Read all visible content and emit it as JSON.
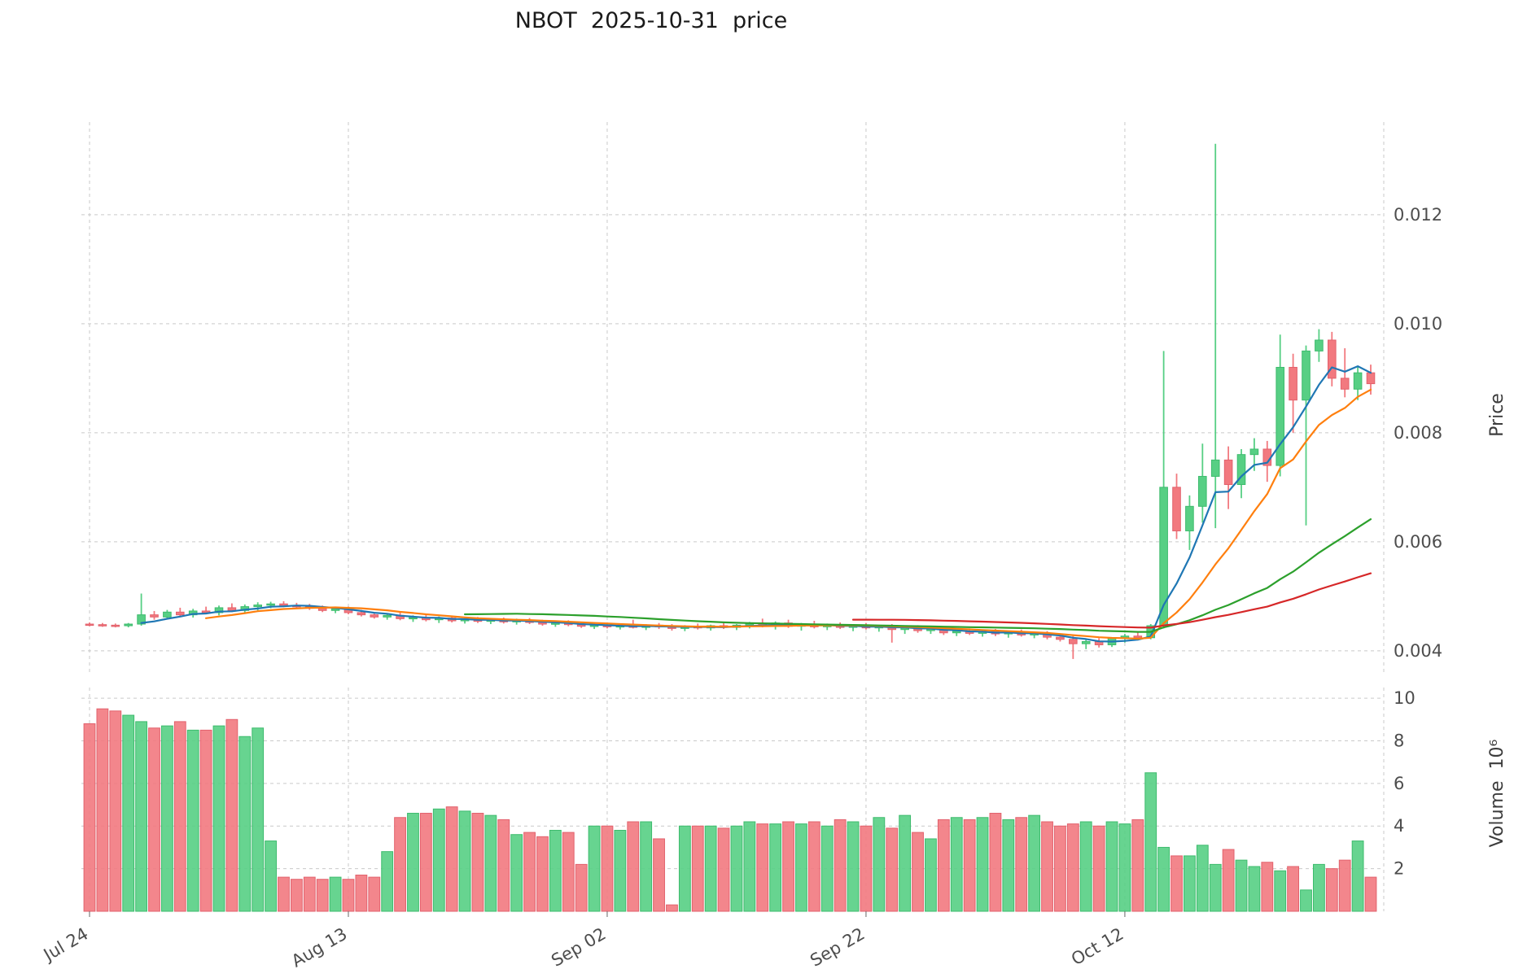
{
  "chart_data": {
    "type": "candlestick",
    "title": "NBOT  2025-10-31  price",
    "ylabel_price": "Price",
    "ylabel_volume": "Volume  10⁶",
    "x_ticks": [
      {
        "index": 0,
        "label": "Jul 24"
      },
      {
        "index": 20,
        "label": "Aug 13"
      },
      {
        "index": 40,
        "label": "Sep 02"
      },
      {
        "index": 60,
        "label": "Sep 22"
      },
      {
        "index": 80,
        "label": "Oct 12"
      }
    ],
    "price_ticks": [
      {
        "value": 0.004,
        "label": "0.004"
      },
      {
        "value": 0.006,
        "label": "0.006"
      },
      {
        "value": 0.008,
        "label": "0.008"
      },
      {
        "value": 0.01,
        "label": "0.010"
      },
      {
        "value": 0.012,
        "label": "0.012"
      }
    ],
    "volume_ticks": [
      {
        "value": 2,
        "label": "2"
      },
      {
        "value": 4,
        "label": "4"
      },
      {
        "value": 6,
        "label": "6"
      },
      {
        "value": 8,
        "label": "8"
      },
      {
        "value": 10,
        "label": "10"
      }
    ],
    "price_ylim": [
      0.00355,
      0.0137
    ],
    "volume_ylim": [
      0,
      10.5
    ],
    "grid": true,
    "legend": "none",
    "colors": {
      "up": "#57cf84",
      "up_edge": "#3dbb6d",
      "down": "#f2797f",
      "down_edge": "#e2616c",
      "grid": "#c9c9c9",
      "tick_text": "#4d4d4d",
      "title_text": "#1a1a1a"
    },
    "ma_lines": [
      {
        "name": "SMA5",
        "window": 5,
        "color": "#1f77b4"
      },
      {
        "name": "SMA10",
        "window": 10,
        "color": "#ff7f0e"
      },
      {
        "name": "SMA30",
        "window": 30,
        "color": "#2ca02c"
      },
      {
        "name": "SMA60",
        "window": 60,
        "color": "#d62728"
      }
    ],
    "dates": [
      "2025-07-24",
      "2025-07-25",
      "2025-07-26",
      "2025-07-27",
      "2025-07-28",
      "2025-07-29",
      "2025-07-30",
      "2025-07-31",
      "2025-08-01",
      "2025-08-02",
      "2025-08-03",
      "2025-08-04",
      "2025-08-05",
      "2025-08-06",
      "2025-08-07",
      "2025-08-08",
      "2025-08-09",
      "2025-08-10",
      "2025-08-11",
      "2025-08-12",
      "2025-08-13",
      "2025-08-14",
      "2025-08-15",
      "2025-08-16",
      "2025-08-17",
      "2025-08-18",
      "2025-08-19",
      "2025-08-20",
      "2025-08-21",
      "2025-08-22",
      "2025-08-23",
      "2025-08-24",
      "2025-08-25",
      "2025-08-26",
      "2025-08-27",
      "2025-08-28",
      "2025-08-29",
      "2025-08-30",
      "2025-08-31",
      "2025-09-01",
      "2025-09-02",
      "2025-09-03",
      "2025-09-04",
      "2025-09-05",
      "2025-09-06",
      "2025-09-07",
      "2025-09-08",
      "2025-09-09",
      "2025-09-10",
      "2025-09-11",
      "2025-09-12",
      "2025-09-13",
      "2025-09-14",
      "2025-09-15",
      "2025-09-16",
      "2025-09-17",
      "2025-09-18",
      "2025-09-19",
      "2025-09-20",
      "2025-09-21",
      "2025-09-22",
      "2025-09-23",
      "2025-09-24",
      "2025-09-25",
      "2025-09-26",
      "2025-09-27",
      "2025-09-28",
      "2025-09-29",
      "2025-09-30",
      "2025-10-01",
      "2025-10-02",
      "2025-10-03",
      "2025-10-04",
      "2025-10-05",
      "2025-10-06",
      "2025-10-07",
      "2025-10-08",
      "2025-10-09",
      "2025-10-10",
      "2025-10-11",
      "2025-10-12",
      "2025-10-13",
      "2025-10-14",
      "2025-10-15",
      "2025-10-16",
      "2025-10-17",
      "2025-10-18",
      "2025-10-19",
      "2025-10-20",
      "2025-10-21",
      "2025-10-22",
      "2025-10-23",
      "2025-10-24",
      "2025-10-25",
      "2025-10-26",
      "2025-10-27",
      "2025-10-28",
      "2025-10-29",
      "2025-10-30",
      "2025-10-31"
    ],
    "ohlc": [
      [
        0.00449,
        0.00452,
        0.00445,
        0.00448
      ],
      [
        0.00448,
        0.00451,
        0.00444,
        0.00447
      ],
      [
        0.00447,
        0.0045,
        0.00443,
        0.00446
      ],
      [
        0.00446,
        0.00451,
        0.00443,
        0.00449
      ],
      [
        0.00449,
        0.00505,
        0.00446,
        0.00466
      ],
      [
        0.00466,
        0.00473,
        0.00457,
        0.00462
      ],
      [
        0.00462,
        0.00475,
        0.00459,
        0.00471
      ],
      [
        0.00471,
        0.00479,
        0.00463,
        0.00466
      ],
      [
        0.00466,
        0.00477,
        0.00461,
        0.00473
      ],
      [
        0.00473,
        0.00481,
        0.00467,
        0.0047
      ],
      [
        0.0047,
        0.00483,
        0.00465,
        0.00479
      ],
      [
        0.00479,
        0.00487,
        0.00471,
        0.00474
      ],
      [
        0.00474,
        0.00485,
        0.00469,
        0.00481
      ],
      [
        0.00481,
        0.00489,
        0.00473,
        0.00484
      ],
      [
        0.00484,
        0.0049,
        0.00478,
        0.00486
      ],
      [
        0.00486,
        0.00491,
        0.0048,
        0.00483
      ],
      [
        0.00483,
        0.00488,
        0.00478,
        0.00481
      ],
      [
        0.00481,
        0.00486,
        0.00475,
        0.00478
      ],
      [
        0.00478,
        0.00483,
        0.00471,
        0.00474
      ],
      [
        0.00474,
        0.0048,
        0.00469,
        0.00477
      ],
      [
        0.00477,
        0.00481,
        0.00467,
        0.0047
      ],
      [
        0.0047,
        0.00475,
        0.00463,
        0.00466
      ],
      [
        0.00466,
        0.00471,
        0.00459,
        0.00462
      ],
      [
        0.00462,
        0.00469,
        0.00457,
        0.00465
      ],
      [
        0.00465,
        0.0047,
        0.00456,
        0.00459
      ],
      [
        0.00459,
        0.00465,
        0.00453,
        0.00461
      ],
      [
        0.00461,
        0.00466,
        0.00454,
        0.00457
      ],
      [
        0.00457,
        0.00463,
        0.00451,
        0.0046
      ],
      [
        0.0046,
        0.00464,
        0.00452,
        0.00455
      ],
      [
        0.00455,
        0.00461,
        0.0045,
        0.00458
      ],
      [
        0.00458,
        0.00462,
        0.00451,
        0.00454
      ],
      [
        0.00454,
        0.0046,
        0.00449,
        0.00457
      ],
      [
        0.00457,
        0.00461,
        0.0045,
        0.00453
      ],
      [
        0.00453,
        0.00459,
        0.00448,
        0.00456
      ],
      [
        0.00456,
        0.0046,
        0.00449,
        0.00452
      ],
      [
        0.00452,
        0.00457,
        0.00446,
        0.00449
      ],
      [
        0.00449,
        0.00455,
        0.00444,
        0.00451
      ],
      [
        0.00451,
        0.00456,
        0.00445,
        0.00448
      ],
      [
        0.00448,
        0.00453,
        0.00442,
        0.00445
      ],
      [
        0.00445,
        0.00451,
        0.0044,
        0.00447
      ],
      [
        0.00447,
        0.00452,
        0.00441,
        0.00444
      ],
      [
        0.00444,
        0.0045,
        0.00439,
        0.00446
      ],
      [
        0.00446,
        0.00457,
        0.00441,
        0.00443
      ],
      [
        0.00443,
        0.00449,
        0.00438,
        0.00447
      ],
      [
        0.00447,
        0.00451,
        0.0044,
        0.00444
      ],
      [
        0.00444,
        0.00449,
        0.00437,
        0.00441
      ],
      [
        0.00441,
        0.00447,
        0.00436,
        0.00445
      ],
      [
        0.00445,
        0.0045,
        0.00439,
        0.00442
      ],
      [
        0.00442,
        0.00448,
        0.00437,
        0.00446
      ],
      [
        0.00446,
        0.00451,
        0.0044,
        0.00443
      ],
      [
        0.00443,
        0.00449,
        0.00438,
        0.00447
      ],
      [
        0.00447,
        0.00453,
        0.00441,
        0.0045
      ],
      [
        0.0045,
        0.00459,
        0.00443,
        0.00446
      ],
      [
        0.00446,
        0.00454,
        0.00439,
        0.00451
      ],
      [
        0.00451,
        0.00457,
        0.00442,
        0.00445
      ],
      [
        0.00445,
        0.00451,
        0.00437,
        0.00449
      ],
      [
        0.00449,
        0.00455,
        0.00441,
        0.00444
      ],
      [
        0.00444,
        0.0045,
        0.00438,
        0.00447
      ],
      [
        0.00447,
        0.00452,
        0.0044,
        0.00443
      ],
      [
        0.00443,
        0.00449,
        0.00436,
        0.00446
      ],
      [
        0.00446,
        0.00451,
        0.00439,
        0.00442
      ],
      [
        0.00442,
        0.00447,
        0.00435,
        0.00445
      ],
      [
        0.00445,
        0.00449,
        0.00415,
        0.00439
      ],
      [
        0.00439,
        0.00445,
        0.00431,
        0.00443
      ],
      [
        0.00443,
        0.00447,
        0.00433,
        0.00437
      ],
      [
        0.00437,
        0.00443,
        0.00431,
        0.0044
      ],
      [
        0.0044,
        0.00444,
        0.00429,
        0.00433
      ],
      [
        0.00433,
        0.00439,
        0.00427,
        0.00436
      ],
      [
        0.00436,
        0.00441,
        0.00429,
        0.00432
      ],
      [
        0.00432,
        0.00438,
        0.00426,
        0.00435
      ],
      [
        0.00435,
        0.0044,
        0.00427,
        0.00431
      ],
      [
        0.00431,
        0.00436,
        0.00424,
        0.00434
      ],
      [
        0.00434,
        0.00439,
        0.00426,
        0.00429
      ],
      [
        0.00429,
        0.00435,
        0.00423,
        0.00432
      ],
      [
        0.00432,
        0.00436,
        0.00421,
        0.00425
      ],
      [
        0.00425,
        0.00431,
        0.00417,
        0.00421
      ],
      [
        0.00421,
        0.00427,
        0.00385,
        0.00413
      ],
      [
        0.00413,
        0.00421,
        0.00403,
        0.00417
      ],
      [
        0.00417,
        0.00423,
        0.00406,
        0.00411
      ],
      [
        0.00411,
        0.00425,
        0.00407,
        0.00423
      ],
      [
        0.00423,
        0.00431,
        0.00415,
        0.00427
      ],
      [
        0.00427,
        0.00435,
        0.00419,
        0.00424
      ],
      [
        0.00424,
        0.00449,
        0.00421,
        0.00446
      ],
      [
        0.00446,
        0.0095,
        0.00441,
        0.007
      ],
      [
        0.007,
        0.00725,
        0.00605,
        0.0062
      ],
      [
        0.0062,
        0.00685,
        0.00585,
        0.00665
      ],
      [
        0.00665,
        0.0078,
        0.00635,
        0.0072
      ],
      [
        0.0072,
        0.0133,
        0.00625,
        0.0075
      ],
      [
        0.0075,
        0.00775,
        0.0066,
        0.00705
      ],
      [
        0.00705,
        0.0077,
        0.0068,
        0.0076
      ],
      [
        0.0076,
        0.0079,
        0.0073,
        0.0077
      ],
      [
        0.0077,
        0.00785,
        0.0071,
        0.0074
      ],
      [
        0.0074,
        0.0098,
        0.0072,
        0.0092
      ],
      [
        0.0092,
        0.00945,
        0.008,
        0.0086
      ],
      [
        0.0086,
        0.0096,
        0.0063,
        0.0095
      ],
      [
        0.0095,
        0.0099,
        0.0093,
        0.0097
      ],
      [
        0.0097,
        0.00985,
        0.00885,
        0.009
      ],
      [
        0.009,
        0.00955,
        0.00865,
        0.0088
      ],
      [
        0.0088,
        0.0092,
        0.0086,
        0.0091
      ],
      [
        0.0091,
        0.00925,
        0.0087,
        0.0089
      ]
    ],
    "volume_millions": [
      8.8,
      9.5,
      9.4,
      9.2,
      8.9,
      8.6,
      8.7,
      8.9,
      8.5,
      8.5,
      8.7,
      9.0,
      8.2,
      8.6,
      3.3,
      1.6,
      1.5,
      1.6,
      1.5,
      1.6,
      1.5,
      1.7,
      1.6,
      2.8,
      4.4,
      4.6,
      4.6,
      4.8,
      4.9,
      4.7,
      4.6,
      4.5,
      4.3,
      3.6,
      3.7,
      3.5,
      3.8,
      3.7,
      2.2,
      4.0,
      4.0,
      3.8,
      4.2,
      4.2,
      3.4,
      0.3,
      4.0,
      4.0,
      4.0,
      3.9,
      4.0,
      4.2,
      4.1,
      4.1,
      4.2,
      4.1,
      4.2,
      4.0,
      4.3,
      4.2,
      4.0,
      4.4,
      3.9,
      4.5,
      3.7,
      3.4,
      4.3,
      4.4,
      4.3,
      4.4,
      4.6,
      4.3,
      4.4,
      4.5,
      4.2,
      4.0,
      4.1,
      4.2,
      4.0,
      4.2,
      4.1,
      4.3,
      6.5,
      3.0,
      2.6,
      2.6,
      3.1,
      2.2,
      2.9,
      2.4,
      2.1,
      2.3,
      1.9,
      2.1,
      1.0,
      2.2,
      2.0,
      2.4,
      3.3,
      1.6
    ]
  }
}
